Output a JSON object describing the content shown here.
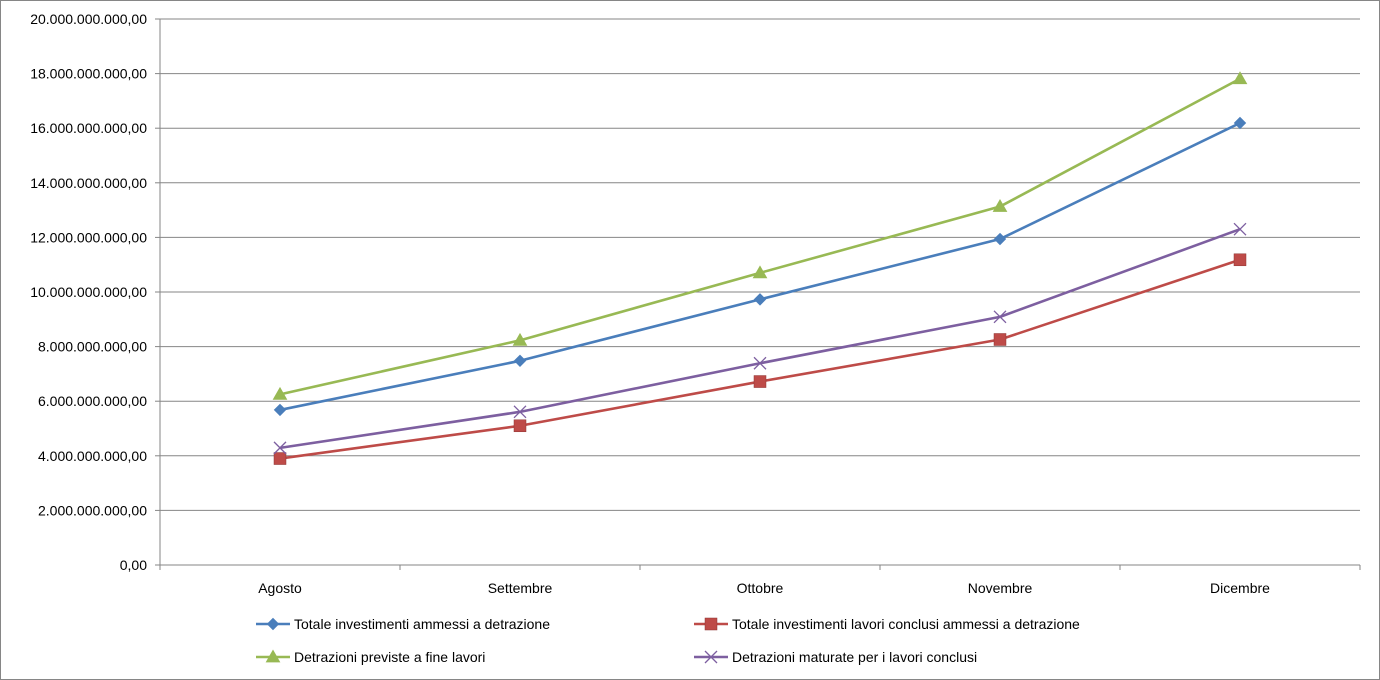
{
  "chart_data": {
    "type": "line",
    "title": "",
    "xlabel": "",
    "ylabel": "",
    "categories": [
      "Agosto",
      "Settembre",
      "Ottobre",
      "Novembre",
      "Dicembre"
    ],
    "ylim": [
      0,
      20000000000
    ],
    "yticks": [
      0,
      2000000000,
      4000000000,
      6000000000,
      8000000000,
      10000000000,
      12000000000,
      14000000000,
      16000000000,
      18000000000,
      20000000000
    ],
    "ytick_labels": [
      "0,00",
      "2.000.000.000,00",
      "4.000.000.000,00",
      "6.000.000.000,00",
      "8.000.000.000,00",
      "10.000.000.000,00",
      "12.000.000.000,00",
      "14.000.000.000,00",
      "16.000.000.000,00",
      "18.000.000.000,00",
      "20.000.000.000,00"
    ],
    "grid": true,
    "legend_position": "bottom",
    "series": [
      {
        "name": "Totale investimenti ammessi a detrazione",
        "color": "#4A7EBB",
        "marker": "diamond",
        "values": [
          5680000000,
          7480000000,
          9730000000,
          11940000000,
          16190000000
        ]
      },
      {
        "name": "Totale investimenti lavori conclusi ammessi a detrazione",
        "color": "#BE4B48",
        "marker": "square",
        "values": [
          3900000000,
          5100000000,
          6720000000,
          8260000000,
          11180000000
        ]
      },
      {
        "name": "Detrazioni previste a fine lavori",
        "color": "#98B954",
        "marker": "triangle",
        "values": [
          6250000000,
          8230000000,
          10700000000,
          13130000000,
          17810000000
        ]
      },
      {
        "name": "Detrazioni maturate per i lavori conclusi",
        "color": "#7D5FA0",
        "marker": "x",
        "values": [
          4290000000,
          5610000000,
          7390000000,
          9090000000,
          12300000000
        ]
      }
    ]
  }
}
